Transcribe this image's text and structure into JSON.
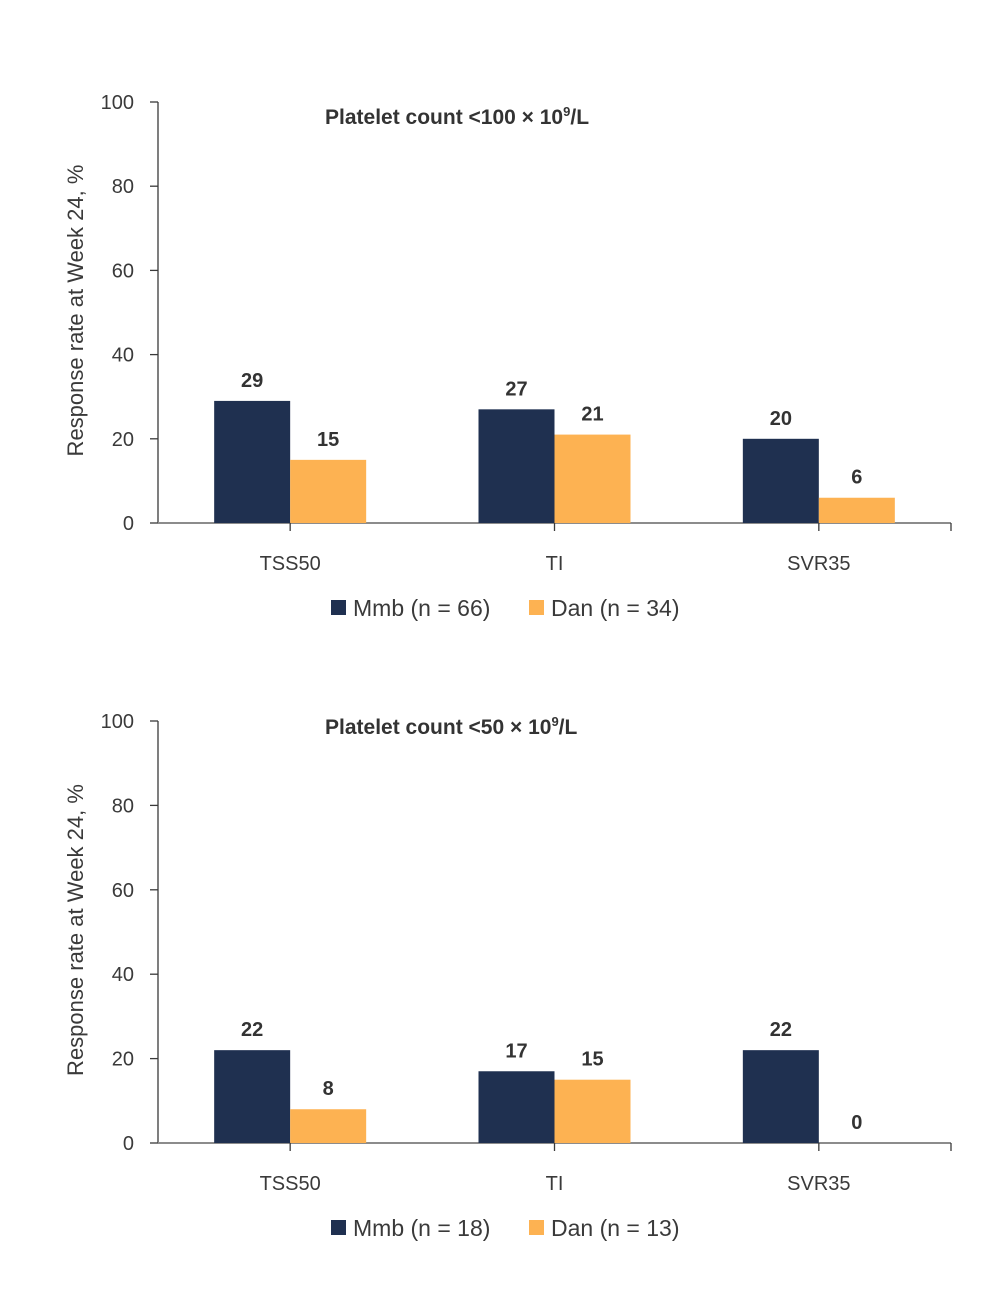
{
  "colors": {
    "mmb": "#1f3050",
    "dan": "#fdb252"
  },
  "chart_data": [
    {
      "type": "bar",
      "title": "Platelet count <100 × 10⁹/L",
      "title_parts": {
        "main": "Platelet count <100 × 10",
        "sup": "9",
        "tail": "/L"
      },
      "xlabel": "",
      "ylabel": "Response rate at Week 24, %",
      "ylim": [
        0,
        100
      ],
      "yticks": [
        0,
        20,
        40,
        60,
        80,
        100
      ],
      "categories": [
        "TSS50",
        "TI",
        "SVR35"
      ],
      "series": [
        {
          "name": "Mmb (n = 66)",
          "key": "mmb",
          "values": [
            29,
            27,
            20
          ]
        },
        {
          "name": "Dan (n = 34)",
          "key": "dan",
          "values": [
            15,
            21,
            6
          ]
        }
      ],
      "grid": false,
      "legend": "bottom-center"
    },
    {
      "type": "bar",
      "title": "Platelet count <50 × 10⁹/L",
      "title_parts": {
        "main": "Platelet count <50 × 10",
        "sup": "9",
        "tail": "/L"
      },
      "xlabel": "",
      "ylabel": "Response rate at Week 24, %",
      "ylim": [
        0,
        100
      ],
      "yticks": [
        0,
        20,
        40,
        60,
        80,
        100
      ],
      "categories": [
        "TSS50",
        "TI",
        "SVR35"
      ],
      "series": [
        {
          "name": "Mmb (n = 18)",
          "key": "mmb",
          "values": [
            22,
            17,
            22
          ]
        },
        {
          "name": "Dan (n = 13)",
          "key": "dan",
          "values": [
            8,
            15,
            0
          ]
        }
      ],
      "grid": false,
      "legend": "bottom-center"
    }
  ]
}
